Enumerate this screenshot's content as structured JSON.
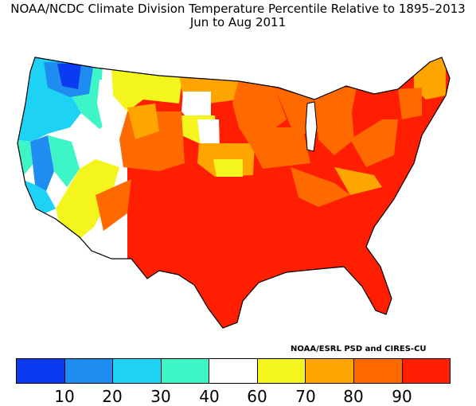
{
  "title": {
    "line1": "NOAA/NCDC Climate Division Temperature Percentile Relative to 1895–2013",
    "line2": "Jun to Aug 2011"
  },
  "credit": "NOAA/ESRL PSD and CIRES-CU",
  "legend": {
    "colors": [
      "#0a3bf0",
      "#1e8cf0",
      "#1ed2f5",
      "#3ef5c8",
      "#ffffff",
      "#f5f51e",
      "#ffa500",
      "#ff6a00",
      "#ff1e00"
    ],
    "tick_labels": [
      "10",
      "20",
      "30",
      "40",
      "60",
      "70",
      "80",
      "90"
    ]
  }
}
